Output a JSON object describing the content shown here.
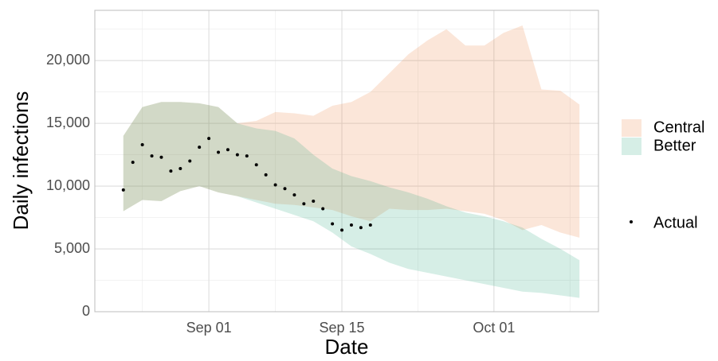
{
  "chart_data": {
    "type": "ribbon",
    "xlabel": "Date",
    "ylabel": "Daily infections",
    "xlim": [
      "Aug 20",
      "Oct 12"
    ],
    "xticks": [
      "Sep 01",
      "Sep 15",
      "Oct 01"
    ],
    "ylim": [
      0,
      24000
    ],
    "yticks": [
      0,
      {
        "value": 5000,
        "label": "5,000"
      },
      {
        "value": 10000,
        "label": "10,000"
      },
      {
        "value": 15000,
        "label": "15,000"
      },
      {
        "value": 20000,
        "label": "20,000"
      }
    ],
    "grid": true,
    "x": [
      "Aug 23",
      "Aug 25",
      "Aug 27",
      "Aug 29",
      "Aug 31",
      "Sep 02",
      "Sep 04",
      "Sep 06",
      "Sep 08",
      "Sep 10",
      "Sep 12",
      "Sep 14",
      "Sep 16",
      "Sep 18",
      "Sep 20",
      "Sep 22",
      "Sep 24",
      "Sep 26",
      "Sep 28",
      "Sep 30",
      "Oct 02",
      "Oct 04",
      "Oct 06",
      "Oct 08",
      "Oct 10"
    ],
    "series": [
      {
        "name": "Central",
        "color": "#e8772e",
        "upper": [
          14000,
          16300,
          16700,
          16700,
          16600,
          16300,
          15000,
          15200,
          15900,
          15800,
          15600,
          16400,
          16700,
          17500,
          19000,
          20500,
          21600,
          22500,
          21200,
          21200,
          22200,
          22800,
          17700,
          17600,
          16500
        ],
        "lower": [
          8000,
          8900,
          8800,
          9600,
          10000,
          9500,
          9200,
          8900,
          8600,
          8500,
          8300,
          8100,
          7600,
          7200,
          8200,
          8100,
          8100,
          8200,
          8000,
          7800,
          7300,
          6500,
          6900,
          6300,
          5900
        ]
      },
      {
        "name": "Better",
        "color": "#1b9e77",
        "upper": [
          14000,
          16300,
          16700,
          16700,
          16600,
          16300,
          15000,
          14600,
          14400,
          13800,
          12500,
          11400,
          10800,
          10400,
          9900,
          9500,
          9000,
          8400,
          7900,
          7600,
          7200,
          6700,
          5800,
          5000,
          4100
        ],
        "lower": [
          8000,
          8900,
          8800,
          9600,
          10000,
          9500,
          9200,
          8700,
          8200,
          7700,
          7200,
          6300,
          5200,
          4600,
          3900,
          3400,
          3100,
          2800,
          2500,
          2200,
          1900,
          1600,
          1500,
          1300,
          1100
        ]
      },
      {
        "name": "Actual",
        "color": "#000000",
        "x": [
          "Aug 23",
          "Aug 24",
          "Aug 25",
          "Aug 26",
          "Aug 27",
          "Aug 28",
          "Aug 29",
          "Aug 30",
          "Aug 31",
          "Sep 01",
          "Sep 02",
          "Sep 03",
          "Sep 04",
          "Sep 05",
          "Sep 06",
          "Sep 07",
          "Sep 08",
          "Sep 09",
          "Sep 10",
          "Sep 11",
          "Sep 12",
          "Sep 13",
          "Sep 14",
          "Sep 15",
          "Sep 16",
          "Sep 17",
          "Sep 18"
        ],
        "values": [
          9700,
          11900,
          13300,
          12400,
          12300,
          11200,
          11400,
          12000,
          13100,
          13800,
          12700,
          12900,
          12500,
          12400,
          11700,
          10900,
          10100,
          9800,
          9300,
          8600,
          8800,
          8200,
          7000,
          6500,
          6900,
          6700,
          6900
        ]
      }
    ]
  }
}
